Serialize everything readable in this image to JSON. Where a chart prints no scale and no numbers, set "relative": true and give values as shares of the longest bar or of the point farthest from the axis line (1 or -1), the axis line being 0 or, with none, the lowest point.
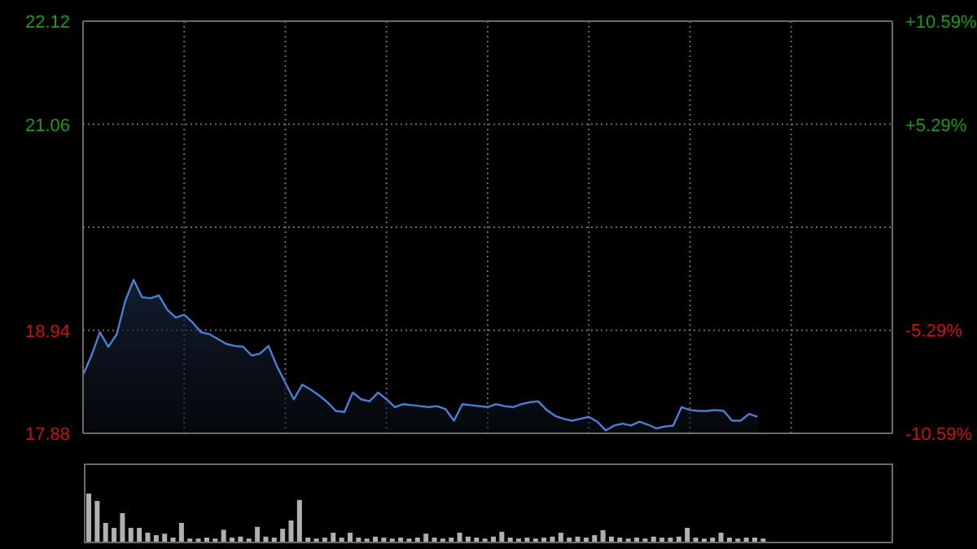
{
  "chart_data": [
    {
      "type": "area",
      "categories": [
        null,
        null,
        null,
        null,
        null,
        null,
        null,
        null,
        null,
        null,
        null,
        null,
        null,
        null,
        null,
        null,
        null,
        null,
        null,
        null,
        null,
        null,
        null,
        null,
        null,
        null,
        null,
        null,
        null,
        null,
        null,
        null,
        null,
        null,
        null,
        null,
        null,
        null,
        null,
        null,
        null,
        null,
        null,
        null,
        null,
        null,
        null,
        null,
        null,
        null,
        null,
        null,
        null,
        null,
        null,
        null,
        null,
        null,
        null,
        null,
        null,
        null,
        null,
        null,
        null,
        null,
        null,
        null,
        null,
        null,
        null,
        null,
        null,
        null,
        null,
        null,
        null,
        null,
        null,
        null,
        null
      ],
      "series": [
        {
          "color": "#4a7fd4",
          "values": [
            18.48,
            18.68,
            18.92,
            18.77,
            18.9,
            19.24,
            19.46,
            19.28,
            19.27,
            19.3,
            19.15,
            19.07,
            19.1,
            19.02,
            18.92,
            18.9,
            18.85,
            18.8,
            18.78,
            18.77,
            18.68,
            18.7,
            18.78,
            18.57,
            18.4,
            18.23,
            18.38,
            18.33,
            18.27,
            18.2,
            18.11,
            18.1,
            18.3,
            18.23,
            18.21,
            18.3,
            18.23,
            18.15,
            18.18,
            18.17,
            18.16,
            18.15,
            18.16,
            18.13,
            18.01,
            18.18,
            18.17,
            18.16,
            18.15,
            18.18,
            18.16,
            18.15,
            18.18,
            18.2,
            18.21,
            18.12,
            18.06,
            18.03,
            18.01,
            18.03,
            18.05,
            18.0,
            17.91,
            17.96,
            17.98,
            17.96,
            18.0,
            17.97,
            17.93,
            17.95,
            17.96,
            18.15,
            18.12,
            18.11,
            18.11,
            18.12,
            18.11,
            18.01,
            18.01,
            18.08,
            18.05
          ]
        }
      ],
      "ylim": [
        17.88,
        22.12
      ],
      "yticks": [
        17.88,
        18.94,
        {
          "value": 20.0,
          "label": null
        },
        21.06,
        22.12
      ],
      "y2lim": [
        -10.59,
        10.59
      ],
      "y2ticks": [
        {
          "value": -10.59,
          "label": "-10.59%"
        },
        {
          "value": -5.29,
          "label": "-5.29%"
        },
        {
          "value": 5.29,
          "label": "+5.29%"
        },
        {
          "value": 10.59,
          "label": "+10.59%"
        }
      ],
      "grid": true
    },
    {
      "type": "bar",
      "relative": true,
      "categories": [
        null,
        null,
        null,
        null,
        null,
        null,
        null,
        null,
        null,
        null,
        null,
        null,
        null,
        null,
        null,
        null,
        null,
        null,
        null,
        null,
        null,
        null,
        null,
        null,
        null,
        null,
        null,
        null,
        null,
        null,
        null,
        null,
        null,
        null,
        null,
        null,
        null,
        null,
        null,
        null,
        null,
        null,
        null,
        null,
        null,
        null,
        null,
        null,
        null,
        null,
        null,
        null,
        null,
        null,
        null,
        null,
        null,
        null,
        null,
        null,
        null,
        null,
        null,
        null,
        null,
        null,
        null,
        null,
        null,
        null,
        null,
        null,
        null,
        null,
        null,
        null,
        null,
        null,
        null,
        null,
        null
      ],
      "color": "#b0b0b0",
      "values": [
        1.0,
        0.85,
        0.4,
        0.3,
        0.6,
        0.3,
        0.3,
        0.2,
        0.15,
        0.18,
        0.1,
        0.4,
        0.08,
        0.08,
        0.1,
        0.08,
        0.26,
        0.1,
        0.12,
        0.08,
        0.32,
        0.12,
        0.1,
        0.28,
        0.45,
        0.87,
        0.1,
        0.08,
        0.1,
        0.2,
        0.1,
        0.2,
        0.1,
        0.08,
        0.12,
        0.1,
        0.08,
        0.1,
        0.08,
        0.1,
        0.18,
        0.1,
        0.08,
        0.1,
        0.2,
        0.12,
        0.1,
        0.08,
        0.12,
        0.22,
        0.1,
        0.08,
        0.1,
        0.08,
        0.1,
        0.12,
        0.2,
        0.1,
        0.12,
        0.1,
        0.15,
        0.25,
        0.12,
        0.1,
        0.08,
        0.1,
        0.08,
        0.12,
        0.1,
        0.1,
        0.12,
        0.3,
        0.1,
        0.08,
        0.1,
        0.2,
        0.1,
        0.08,
        0.1,
        0.1,
        0.08
      ]
    }
  ]
}
